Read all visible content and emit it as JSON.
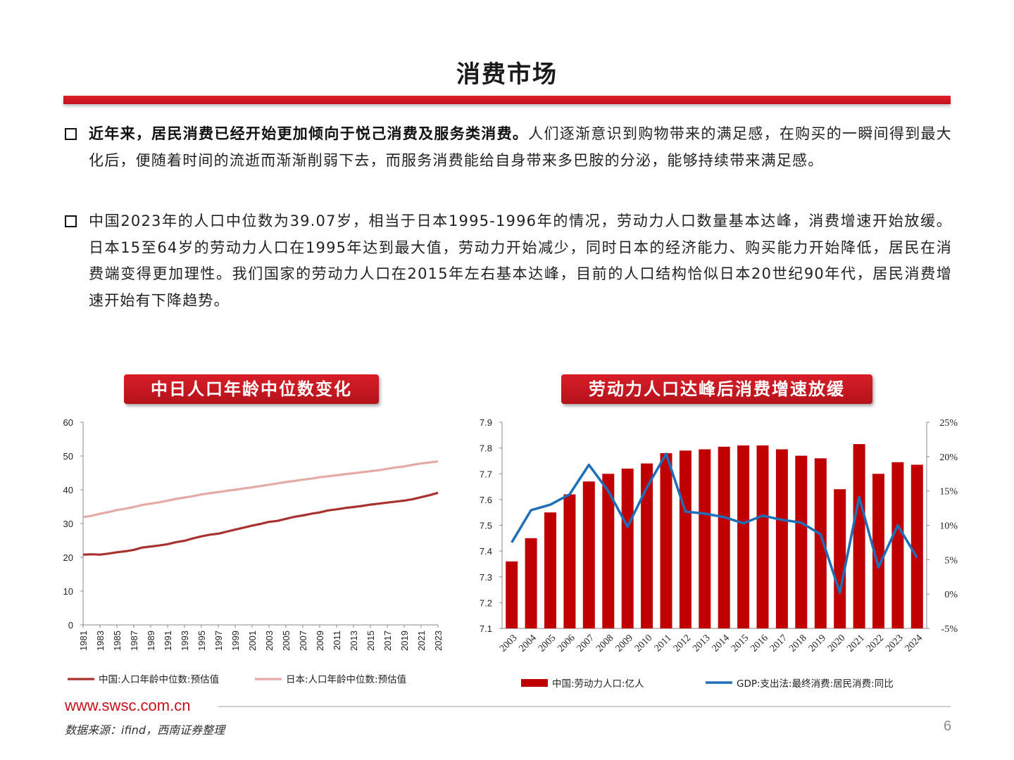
{
  "page": {
    "title": "消费市场",
    "bullets": [
      {
        "bold": "近年来，居民消费已经开始更加倾向于悦己消费及服务类消费。",
        "text": "人们逐渐意识到购物带来的满足感，在购买的一瞬间得到最大化后，便随着时间的流逝而渐渐削弱下去，而服务消费能给自身带来多巴胺的分泌，能够持续带来满足感。"
      },
      {
        "bold": "",
        "text": "中国2023年的人口中位数为39.07岁，相当于日本1995-1996年的情况，劳动力人口数量基本达峰，消费增速开始放缓。日本15至64岁的劳动力人口在1995年达到最大值，劳动力开始减少，同时日本的经济能力、购买能力开始降低，居民在消费端变得更加理性。我们国家的劳动力人口在2015年左右基本达峰，目前的人口结构恰似日本20世纪90年代，居民消费增速开始有下降趋势。"
      }
    ],
    "footer": {
      "url": "www.swsc.com.cn",
      "source": "数据来源：ifind，西南证券整理",
      "page_number": "6"
    }
  },
  "chart_data": [
    {
      "type": "line",
      "title": "中日人口年龄中位数变化",
      "x": [
        1981,
        1982,
        1983,
        1984,
        1985,
        1986,
        1987,
        1988,
        1989,
        1990,
        1991,
        1992,
        1993,
        1994,
        1995,
        1996,
        1997,
        1998,
        1999,
        2000,
        2001,
        2002,
        2003,
        2004,
        2005,
        2006,
        2007,
        2008,
        2009,
        2010,
        2011,
        2012,
        2013,
        2014,
        2015,
        2016,
        2017,
        2018,
        2019,
        2020,
        2021,
        2022,
        2023
      ],
      "x_tick_labels": [
        "1981",
        "1983",
        "1985",
        "1987",
        "1989",
        "1991",
        "1993",
        "1995",
        "1997",
        "1999",
        "2001",
        "2003",
        "2005",
        "2007",
        "2009",
        "2011",
        "2013",
        "2015",
        "2017",
        "2019",
        "2021",
        "2023"
      ],
      "ylim": [
        0,
        60
      ],
      "y_ticks": [
        0,
        10,
        20,
        30,
        40,
        50,
        60
      ],
      "grid": false,
      "legend": "bottom",
      "series": [
        {
          "name": "中国:人口年龄中位数:预估值",
          "color": "#a8322e",
          "values": [
            20.8,
            20.9,
            20.8,
            21.1,
            21.5,
            21.8,
            22.2,
            22.9,
            23.2,
            23.5,
            23.9,
            24.5,
            24.9,
            25.6,
            26.2,
            26.7,
            27.0,
            27.6,
            28.2,
            28.8,
            29.4,
            29.9,
            30.5,
            30.8,
            31.4,
            32.0,
            32.4,
            32.9,
            33.3,
            33.9,
            34.2,
            34.6,
            34.9,
            35.2,
            35.6,
            35.9,
            36.2,
            36.5,
            36.8,
            37.2,
            37.8,
            38.4,
            39.1
          ]
        },
        {
          "name": "日本:人口年龄中位数:预估值",
          "color": "#e6aaa6",
          "values": [
            31.9,
            32.3,
            32.9,
            33.4,
            34.0,
            34.4,
            34.9,
            35.5,
            35.9,
            36.3,
            36.8,
            37.3,
            37.7,
            38.1,
            38.6,
            39.0,
            39.3,
            39.7,
            40.0,
            40.4,
            40.7,
            41.1,
            41.5,
            41.9,
            42.3,
            42.6,
            43.0,
            43.3,
            43.7,
            44.0,
            44.3,
            44.6,
            44.9,
            45.2,
            45.5,
            45.8,
            46.2,
            46.6,
            46.9,
            47.4,
            47.8,
            48.1,
            48.4
          ]
        }
      ]
    },
    {
      "type": "bar",
      "title": "劳动力人口达峰后消费增速放缓",
      "categories": [
        "2003",
        "2004",
        "2005",
        "2006",
        "2007",
        "2008",
        "2009",
        "2010",
        "2011",
        "2012",
        "2013",
        "2014",
        "2015",
        "2016",
        "2017",
        "2018",
        "2019",
        "2020",
        "2021",
        "2022",
        "2023",
        "2024"
      ],
      "ylim_left": [
        7.1,
        7.9
      ],
      "y_ticks_left": [
        7.1,
        7.2,
        7.3,
        7.4,
        7.5,
        7.6,
        7.7,
        7.8,
        7.9
      ],
      "ylim_right": [
        -5,
        25
      ],
      "y_ticks_right": [
        "-5%",
        "0%",
        "5%",
        "10%",
        "15%",
        "20%",
        "25%"
      ],
      "grid": false,
      "legend": "bottom",
      "series": [
        {
          "name": "中国:劳动力人口:亿人",
          "type": "bar",
          "axis": "left",
          "color": "#c00000",
          "values": [
            7.36,
            7.45,
            7.55,
            7.62,
            7.67,
            7.7,
            7.72,
            7.74,
            7.78,
            7.79,
            7.795,
            7.805,
            7.81,
            7.81,
            7.795,
            7.77,
            7.76,
            7.64,
            7.815,
            7.7,
            7.745,
            7.735
          ]
        },
        {
          "name": "GDP:支出法:最终消费:居民消费:同比",
          "type": "line",
          "axis": "right",
          "color": "#1f6fb8",
          "values": [
            7.5,
            12.2,
            13.0,
            14.5,
            18.8,
            15.0,
            9.8,
            15.5,
            20.4,
            12.0,
            11.7,
            11.2,
            10.3,
            11.4,
            10.8,
            10.4,
            8.7,
            0.2,
            14.1,
            3.9,
            10.0,
            5.3
          ]
        }
      ]
    }
  ]
}
